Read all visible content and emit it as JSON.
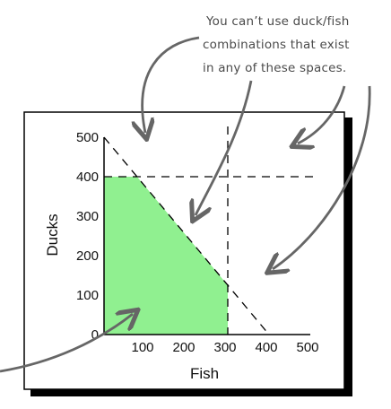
{
  "chart_data": {
    "type": "area",
    "xlabel": "Fish",
    "ylabel": "Ducks",
    "xlim": [
      0,
      500
    ],
    "ylim": [
      0,
      500
    ],
    "x_ticks": [
      "100",
      "200",
      "300",
      "400",
      "500"
    ],
    "y_ticks": [
      "0",
      "100",
      "200",
      "300",
      "400",
      "500"
    ],
    "constraints": [
      {
        "kind": "vertical",
        "x": 300
      },
      {
        "kind": "horizontal",
        "y": 400
      },
      {
        "kind": "line",
        "points": [
          [
            0,
            500
          ],
          [
            400,
            0
          ]
        ]
      }
    ],
    "feasible_region": [
      [
        0,
        0
      ],
      [
        0,
        400
      ],
      [
        80,
        400
      ],
      [
        300,
        125
      ],
      [
        300,
        0
      ]
    ],
    "feasible_color": "#90f090",
    "annotation": [
      "You can’t use duck/fish",
      "combinations that exist",
      "in any of these spaces."
    ]
  }
}
